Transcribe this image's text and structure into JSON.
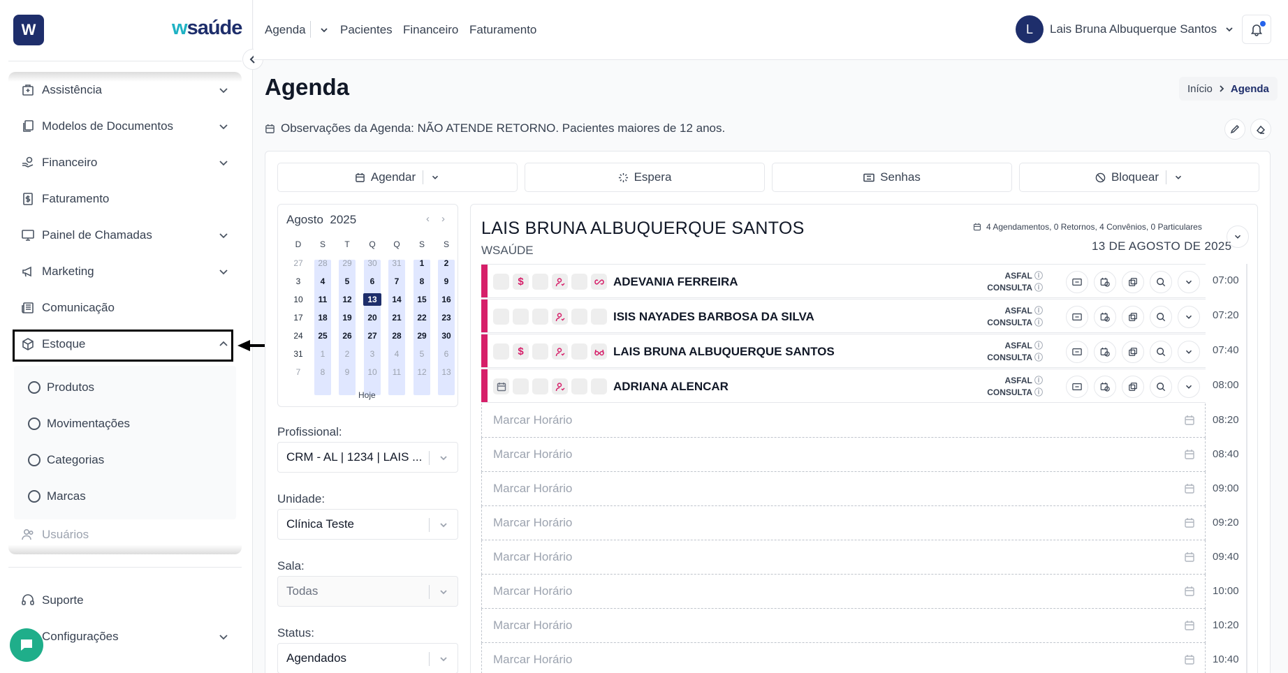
{
  "sidebar": {
    "logo_letter": "W",
    "brand": {
      "prefix": "w",
      "rest": "saúde"
    },
    "items": [
      {
        "label": "Assistência",
        "icon": "hospital-icon",
        "chevron": true
      },
      {
        "label": "Modelos de Documentos",
        "icon": "documents-icon",
        "chevron": true
      },
      {
        "label": "Financeiro",
        "icon": "money-hand-icon",
        "chevron": true
      },
      {
        "label": "Faturamento",
        "icon": "invoice-icon",
        "chevron": false
      },
      {
        "label": "Painel de Chamadas",
        "icon": "monitor-icon",
        "chevron": true
      },
      {
        "label": "Marketing",
        "icon": "megaphone-icon",
        "chevron": true
      },
      {
        "label": "Comunicação",
        "icon": "newspaper-icon",
        "chevron": false
      },
      {
        "label": "Estoque",
        "icon": "box-icon",
        "chevron": true,
        "expanded": true
      }
    ],
    "subitems": [
      "Produtos",
      "Movimentações",
      "Categorias",
      "Marcas"
    ],
    "faded_item": "Usuários",
    "bottom": [
      {
        "label": "Suporte",
        "icon": "headset-icon"
      },
      {
        "label": "Configurações",
        "icon": "gear-icon"
      }
    ]
  },
  "header": {
    "nav": [
      "Agenda",
      "Pacientes",
      "Financeiro",
      "Faturamento"
    ],
    "user_initial": "L",
    "user_name": "Lais Bruna Albuquerque Santos"
  },
  "page": {
    "title": "Agenda",
    "breadcrumb": [
      "Início",
      "Agenda"
    ],
    "observations": "Observações da Agenda: NÃO ATENDE RETORNO. Pacientes maiores de 12 anos."
  },
  "actions": [
    "Agendar",
    "Espera",
    "Senhas",
    "Bloquear"
  ],
  "calendar": {
    "month": "Agosto",
    "year": "2025",
    "weekdays": [
      "D",
      "S",
      "T",
      "Q",
      "Q",
      "S",
      "S"
    ],
    "weeks": [
      [
        [
          "27",
          "o"
        ],
        [
          "28",
          "o"
        ],
        [
          "29",
          "o"
        ],
        [
          "30",
          "o"
        ],
        [
          "31",
          "o"
        ],
        [
          "1",
          "b"
        ],
        [
          "2",
          "b"
        ]
      ],
      [
        [
          "3",
          "n"
        ],
        [
          "4",
          "b"
        ],
        [
          "5",
          "b"
        ],
        [
          "6",
          "b"
        ],
        [
          "7",
          "b"
        ],
        [
          "8",
          "b"
        ],
        [
          "9",
          "b"
        ]
      ],
      [
        [
          "10",
          "n"
        ],
        [
          "11",
          "b"
        ],
        [
          "12",
          "b"
        ],
        [
          "13",
          "sel"
        ],
        [
          "14",
          "b"
        ],
        [
          "15",
          "b"
        ],
        [
          "16",
          "b"
        ]
      ],
      [
        [
          "17",
          "n"
        ],
        [
          "18",
          "b"
        ],
        [
          "19",
          "b"
        ],
        [
          "20",
          "b"
        ],
        [
          "21",
          "b"
        ],
        [
          "22",
          "b"
        ],
        [
          "23",
          "b"
        ]
      ],
      [
        [
          "24",
          "n"
        ],
        [
          "25",
          "b"
        ],
        [
          "26",
          "b"
        ],
        [
          "27",
          "b"
        ],
        [
          "28",
          "b"
        ],
        [
          "29",
          "b"
        ],
        [
          "30",
          "b"
        ]
      ],
      [
        [
          "31",
          "n"
        ],
        [
          "1",
          "o"
        ],
        [
          "2",
          "o"
        ],
        [
          "3",
          "o"
        ],
        [
          "4",
          "o"
        ],
        [
          "5",
          "o"
        ],
        [
          "6",
          "o"
        ]
      ],
      [
        [
          "7",
          "o"
        ],
        [
          "8",
          "o"
        ],
        [
          "9",
          "o"
        ],
        [
          "10",
          "o"
        ],
        [
          "11",
          "o"
        ],
        [
          "12",
          "o"
        ],
        [
          "13",
          "o"
        ]
      ]
    ],
    "today_label": "Hoje"
  },
  "filters": [
    {
      "label": "Profissional:",
      "value": "CRM - AL | 1234 | LAIS ...",
      "disabled": false
    },
    {
      "label": "Unidade:",
      "value": "Clínica Teste",
      "disabled": false
    },
    {
      "label": "Sala:",
      "value": "Todas",
      "disabled": true
    },
    {
      "label": "Status:",
      "value": "Agendados",
      "disabled": false
    }
  ],
  "schedule": {
    "professional": "LAIS BRUNA ALBUQUERQUE SANTOS",
    "organization": "WSAÚDE",
    "summary": "4 Agendamentos, 0 Retornos, 4 Convênios, 0 Particulares",
    "date": "13 DE AGOSTO DE 2025",
    "appointments": [
      {
        "time": "07:00",
        "patient": "ADEVANIA FERREIRA",
        "insurance": "ASFAL",
        "type": "CONSULTA",
        "icons": [
          "",
          "$",
          "",
          "user",
          "",
          "link"
        ]
      },
      {
        "time": "07:20",
        "patient": "ISIS NAYADES BARBOSA DA SILVA",
        "insurance": "ASFAL",
        "type": "CONSULTA",
        "icons": [
          "",
          "",
          "",
          "user",
          "",
          ""
        ]
      },
      {
        "time": "07:40",
        "patient": "LAIS BRUNA ALBUQUERQUE SANTOS",
        "insurance": "ASFAL",
        "type": "CONSULTA",
        "icons": [
          "",
          "$",
          "",
          "user",
          "",
          "glasses"
        ]
      },
      {
        "time": "08:00",
        "patient": "ADRIANA ALENCAR",
        "insurance": "ASFAL",
        "type": "CONSULTA",
        "icons": [
          "cal",
          "",
          "",
          "user",
          "",
          ""
        ]
      }
    ],
    "empty_label": "Marcar Horário",
    "empty_times": [
      "08:20",
      "08:40",
      "09:00",
      "09:20",
      "09:40",
      "10:00",
      "10:20",
      "10:40"
    ]
  },
  "colors": {
    "primary": "#1e2e6b",
    "accent": "#d61f69",
    "brand_w": "#1fb2c4",
    "chat": "#1fae8a"
  }
}
